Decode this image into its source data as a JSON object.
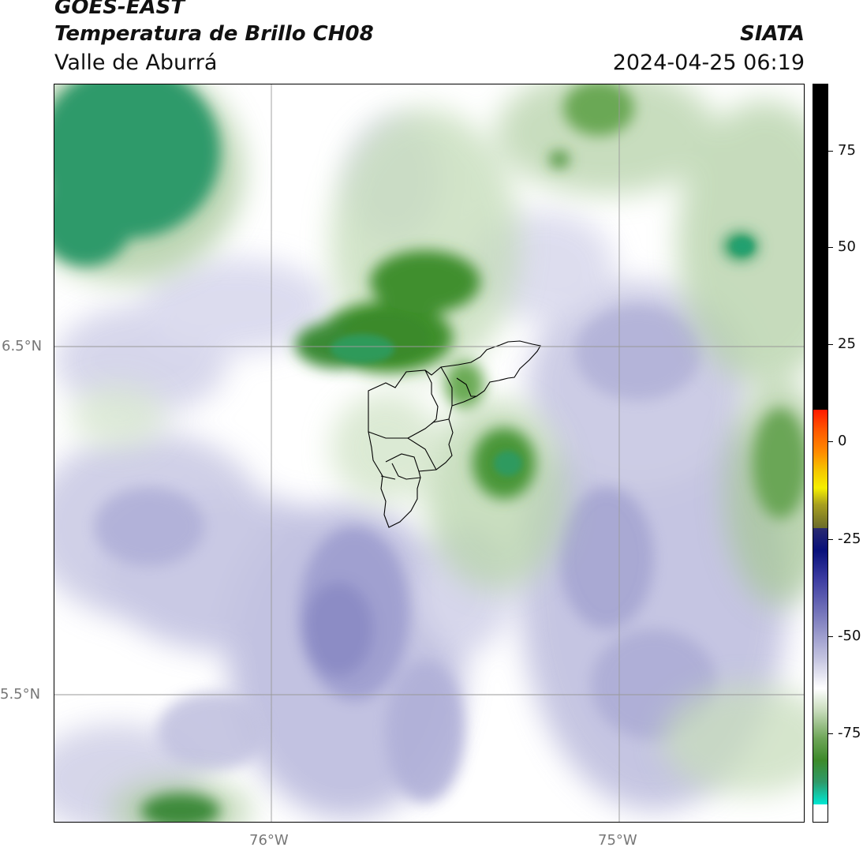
{
  "header": {
    "satellite": "GOES-EAST",
    "product": "Temperatura de Brillo CH08",
    "region": "Valle de Aburrá",
    "agency": "SIATA",
    "timestamp": "2024-04-25 06:19"
  },
  "map": {
    "lat_labels": [
      "6.5°N",
      "5.5°N"
    ],
    "lon_labels": [
      "76°W",
      "75°W"
    ]
  },
  "colorbar": {
    "ticks": [
      "75",
      "50",
      "25",
      "0",
      "-25",
      "-50",
      "-75"
    ],
    "colors": {
      "black": "#000000",
      "red": "#ff1a00",
      "orange": "#ff8c00",
      "yellow": "#f5ef00",
      "olive": "#6b6b2a",
      "navy": "#08107a",
      "lavender": "#7b7bbd",
      "white": "#ffffff",
      "green": "#3d8a2a",
      "teal": "#00e8d4"
    }
  }
}
